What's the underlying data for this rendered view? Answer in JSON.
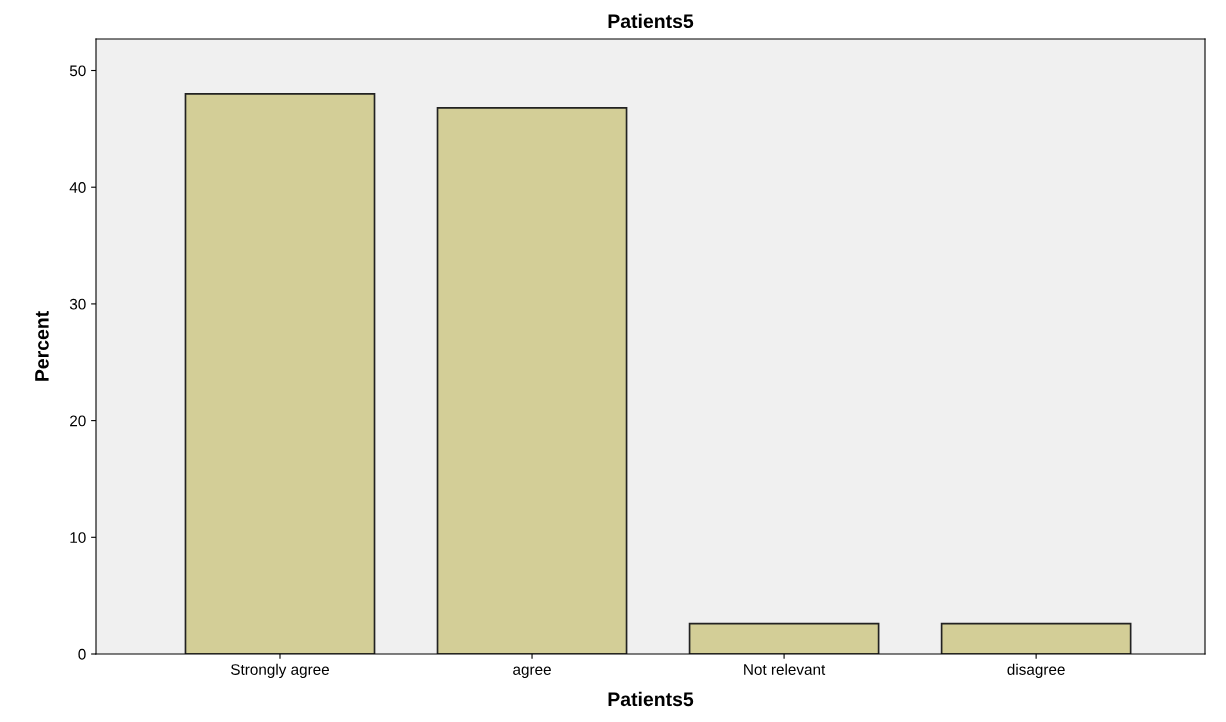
{
  "chart_data": {
    "type": "bar",
    "title": "Patients5",
    "xlabel": "Patients5",
    "ylabel": "Percent",
    "categories": [
      "Strongly agree",
      "agree",
      "Not relevant",
      "disagree"
    ],
    "values": [
      48.0,
      46.8,
      2.6,
      2.6
    ],
    "color": "#d3ce97",
    "ylim": [
      0,
      52.7
    ],
    "yticks": [
      0,
      10,
      20,
      30,
      40,
      50
    ],
    "grid": false,
    "legend": false
  }
}
